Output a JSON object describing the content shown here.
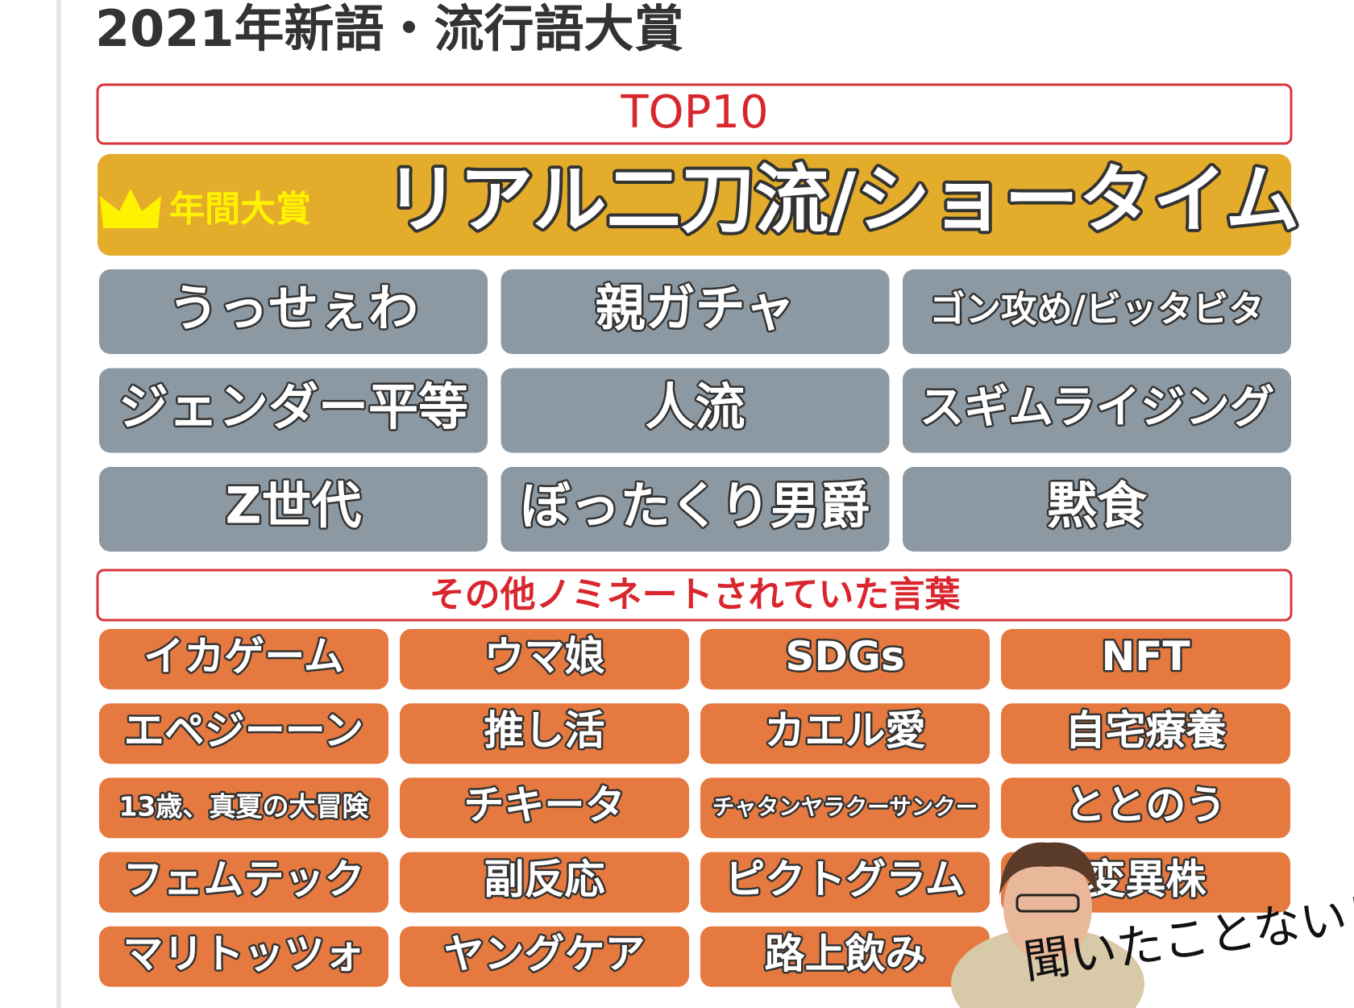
{
  "header": {
    "title": "2021年新語・流行語大賞"
  },
  "top10": {
    "label": "TOP10",
    "grand_prize": {
      "badge": "年間大賞",
      "word": "リアル二刀流/ショータイム"
    },
    "words": [
      "うっせぇわ",
      "親ガチャ",
      "ゴン攻め/ビッタビタ",
      "ジェンダー平等",
      "人流",
      "スギムライジング",
      "Z世代",
      "ぼったくり男爵",
      "黙食"
    ]
  },
  "nominees": {
    "label": "その他ノミネートされていた言葉",
    "words": [
      "イカゲーム",
      "ウマ娘",
      "SDGs",
      "NFT",
      "エペジーーン",
      "推し活",
      "カエル愛",
      "自宅療養",
      "13歳、真夏の大冒険",
      "チキータ",
      "チャタンヤラクーサンクー",
      "ととのう",
      "フェムテック",
      "副反応",
      "ピクトグラム",
      "変異株",
      "マリトッツォ",
      "ヤングケア",
      "路上飲み"
    ]
  },
  "caption": "聞いたことない！"
}
